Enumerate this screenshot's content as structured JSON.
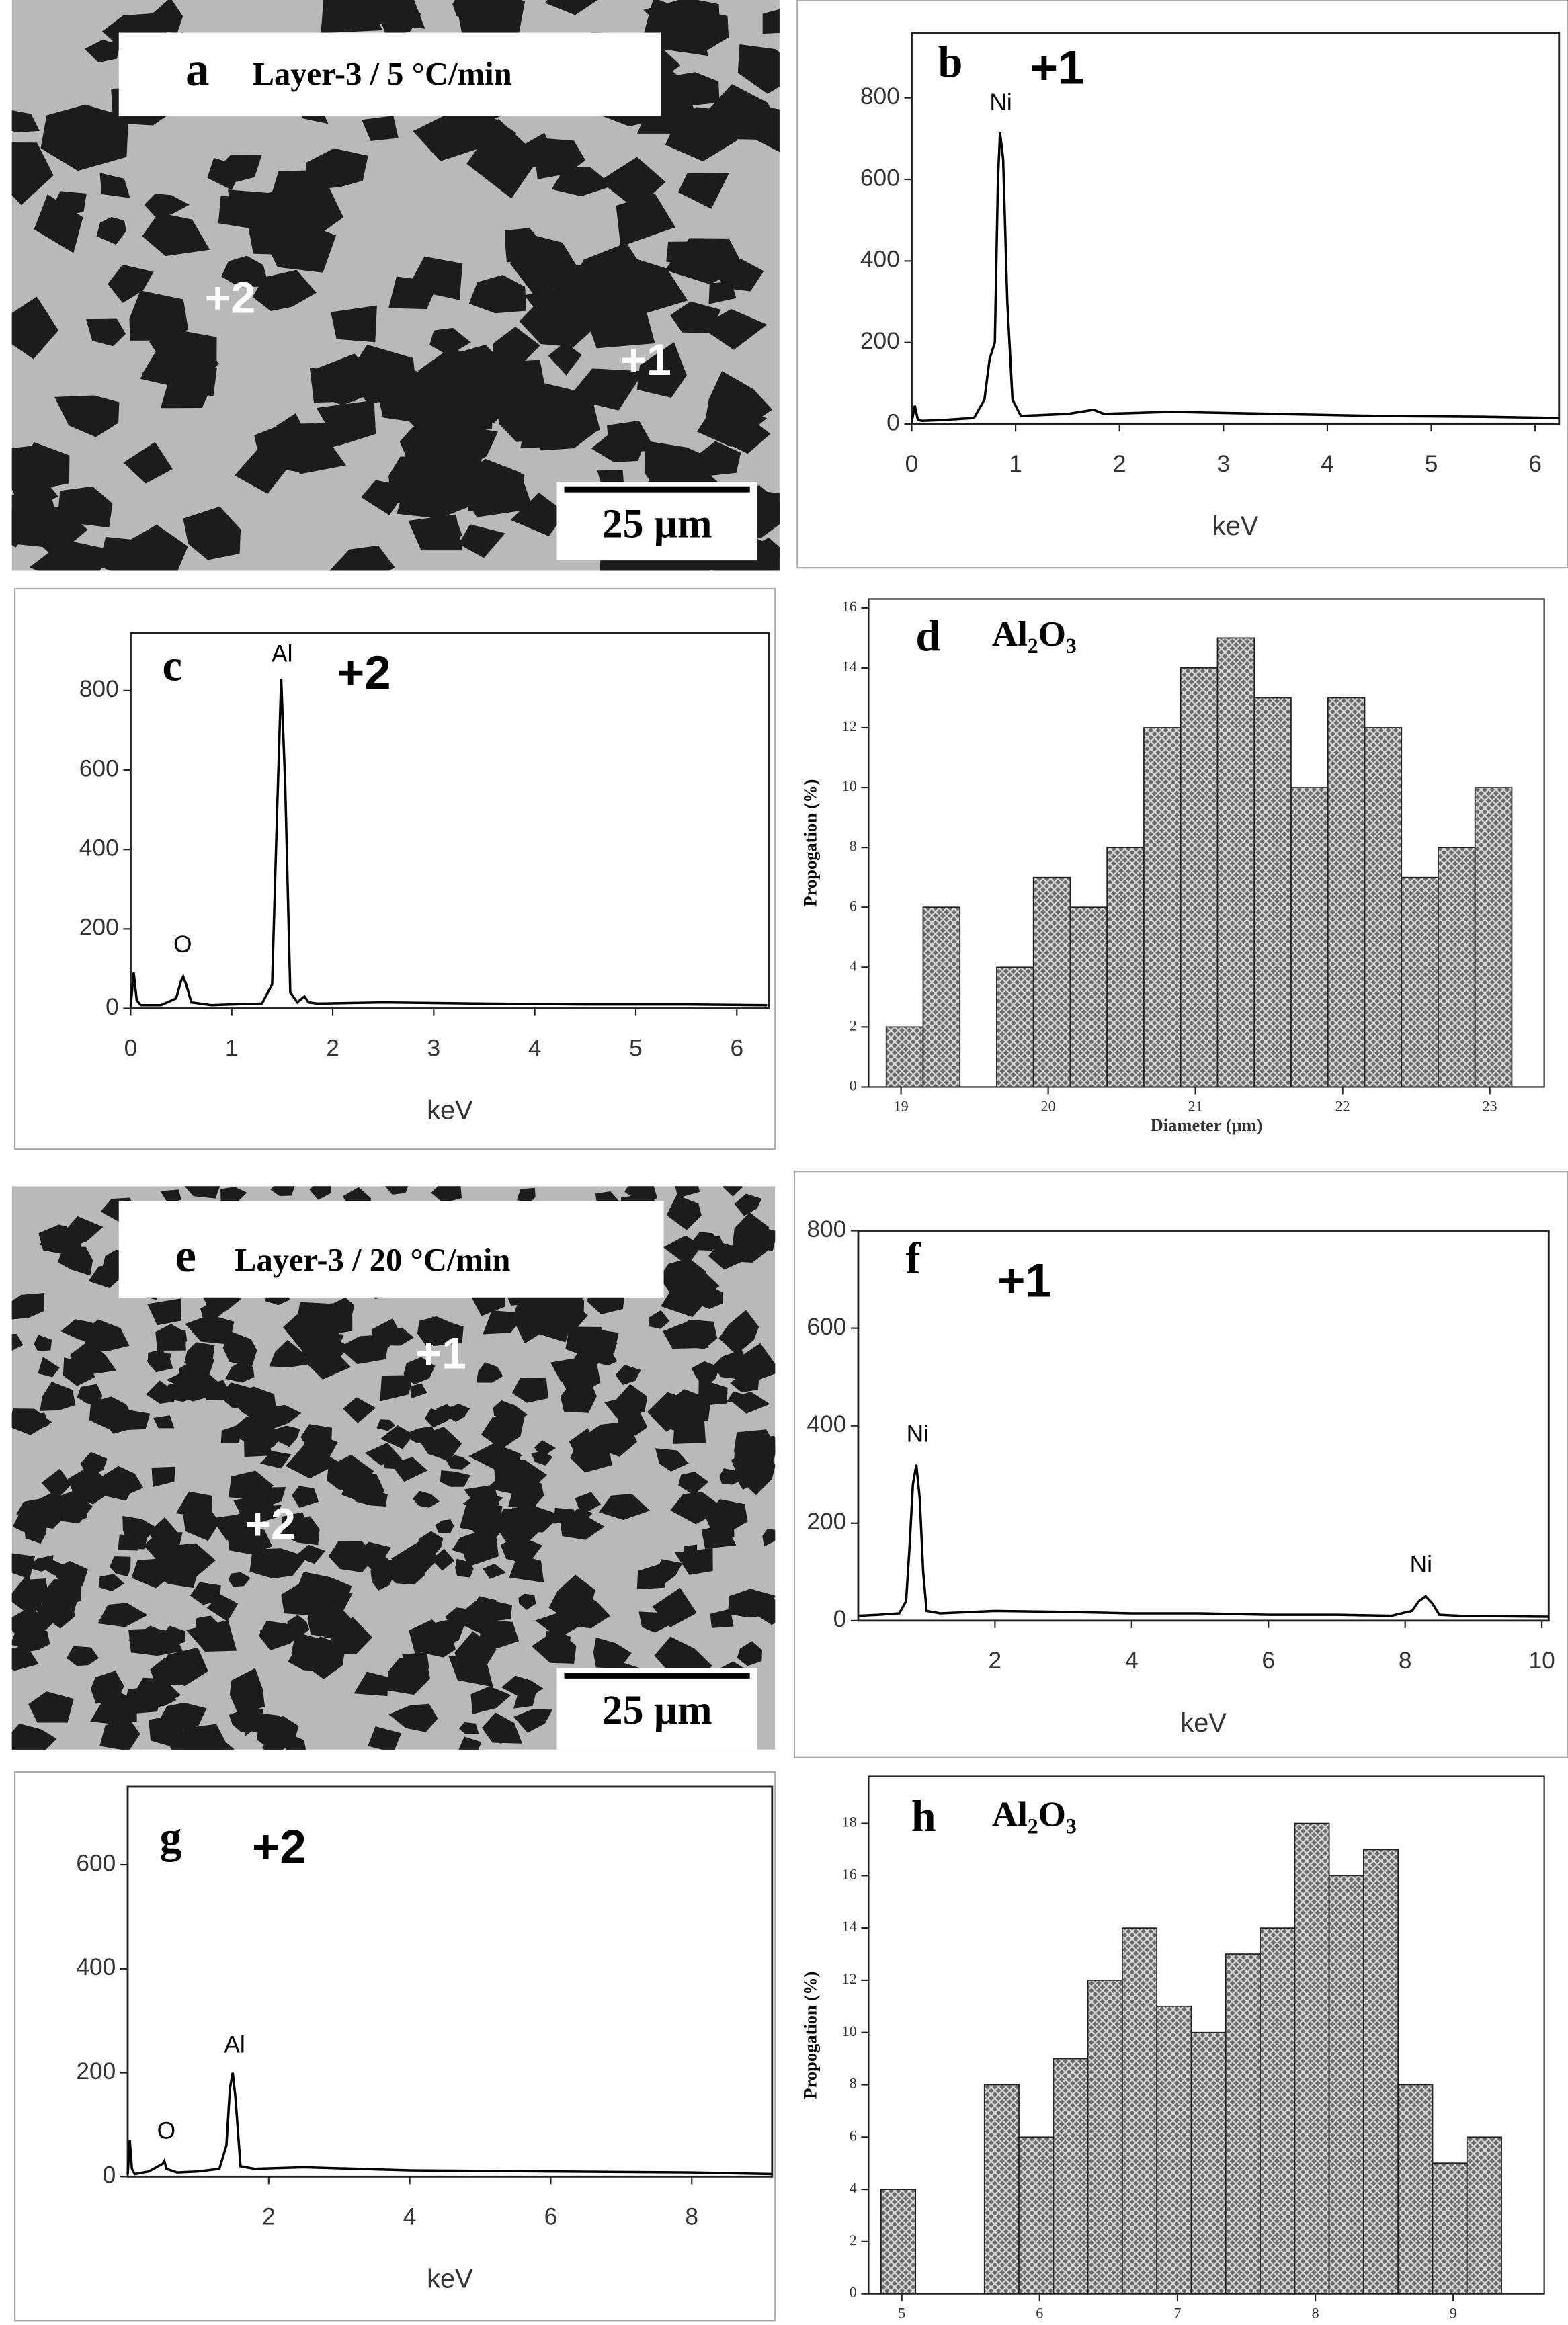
{
  "micrographs": [
    {
      "panel": "a",
      "title": "Layer-3 / 5 °C/min",
      "markers": [
        "+2",
        "+1"
      ],
      "scale_bar": "25 μm"
    },
    {
      "panel": "e",
      "title": "Layer-3 / 20 °C/min",
      "markers": [
        "+1",
        "+2"
      ],
      "scale_bar": "25 μm"
    }
  ],
  "chart_data": [
    {
      "type": "line",
      "panel": "b",
      "annotations": [
        "+1",
        "Ni"
      ],
      "xlabel": "keV",
      "x": [
        0,
        0.03,
        0.06,
        0.1,
        0.3,
        0.6,
        0.7,
        0.75,
        0.8,
        0.83,
        0.85,
        0.88,
        0.92,
        0.97,
        1.05,
        1.5,
        1.75,
        1.85,
        2.5,
        3.5,
        4.5,
        5.5,
        6.23
      ],
      "values": [
        5,
        45,
        10,
        8,
        10,
        15,
        60,
        160,
        200,
        600,
        715,
        650,
        300,
        60,
        20,
        25,
        35,
        25,
        30,
        25,
        20,
        18,
        15
      ],
      "color": "#000000",
      "xlim": [
        0,
        6.23
      ],
      "xticks": [
        0,
        1,
        2,
        3,
        4,
        5,
        6
      ],
      "ylim": [
        0,
        960
      ],
      "yticks": [
        0,
        200,
        400,
        600,
        800
      ]
    },
    {
      "type": "line",
      "panel": "c",
      "annotations": [
        "+2",
        "Al",
        "O"
      ],
      "xlabel": "keV",
      "x": [
        0,
        0.03,
        0.06,
        0.1,
        0.3,
        0.45,
        0.5,
        0.52,
        0.55,
        0.6,
        0.8,
        1.0,
        1.3,
        1.4,
        1.45,
        1.49,
        1.53,
        1.58,
        1.65,
        1.72,
        1.76,
        1.85,
        2.5,
        3.5,
        4.5,
        5.5,
        6.3
      ],
      "values": [
        5,
        90,
        20,
        8,
        8,
        25,
        70,
        80,
        60,
        15,
        8,
        10,
        12,
        60,
        500,
        830,
        560,
        40,
        15,
        30,
        15,
        12,
        15,
        12,
        10,
        10,
        8
      ],
      "color": "#000000",
      "xlim": [
        0,
        6.32
      ],
      "xticks": [
        0,
        1,
        2,
        3,
        4,
        5,
        6
      ],
      "ylim": [
        0,
        945
      ],
      "yticks": [
        0,
        200,
        400,
        600,
        800
      ]
    },
    {
      "type": "histogram",
      "panel": "d",
      "title": "Al₂O₃",
      "xlabel": "Diameter (μm)",
      "ylabel": "Propogation (%)",
      "bins": [
        18.9,
        19.15,
        19.4,
        19.65,
        19.9,
        20.15,
        20.4,
        20.65,
        20.9,
        21.15,
        21.4,
        21.65,
        21.9,
        22.15,
        22.4,
        22.65,
        22.9,
        23.15
      ],
      "values": [
        2,
        6,
        0,
        4,
        7,
        6,
        8,
        12,
        14,
        15,
        13,
        10,
        13,
        12,
        7,
        8,
        10
      ],
      "color": "#555555",
      "xlim": [
        18.78,
        23.37
      ],
      "xticks": [
        19,
        20,
        21,
        22,
        23
      ],
      "ylim": [
        0,
        16.3
      ],
      "yticks": [
        0,
        2,
        4,
        6,
        8,
        10,
        12,
        14,
        16
      ]
    },
    {
      "type": "line",
      "panel": "f",
      "annotations": [
        "+1",
        "Ni",
        "Ni"
      ],
      "xlabel": "keV",
      "x": [
        0,
        0.3,
        0.6,
        0.7,
        0.75,
        0.8,
        0.85,
        0.9,
        0.95,
        1.0,
        1.2,
        2,
        3,
        4,
        5,
        6,
        7,
        7.8,
        8.1,
        8.2,
        8.3,
        8.4,
        8.5,
        8.8,
        10.1
      ],
      "values": [
        10,
        12,
        15,
        40,
        150,
        280,
        320,
        250,
        100,
        20,
        15,
        20,
        18,
        15,
        15,
        12,
        12,
        10,
        20,
        40,
        50,
        35,
        12,
        10,
        8
      ],
      "color": "#000000",
      "xlim": [
        0,
        10.1
      ],
      "xticks": [
        2,
        4,
        6,
        8,
        10
      ],
      "ylim": [
        0,
        800
      ],
      "yticks": [
        0,
        200,
        400,
        600,
        800
      ]
    },
    {
      "type": "line",
      "panel": "g",
      "annotations": [
        "+2",
        "Al",
        "O"
      ],
      "xlabel": "keV",
      "x": [
        0,
        0.03,
        0.06,
        0.1,
        0.3,
        0.5,
        0.52,
        0.55,
        0.7,
        1.0,
        1.3,
        1.4,
        1.45,
        1.49,
        1.53,
        1.6,
        1.8,
        2.5,
        4,
        6,
        8,
        9.14
      ],
      "values": [
        5,
        70,
        15,
        5,
        10,
        25,
        30,
        15,
        8,
        10,
        15,
        60,
        170,
        200,
        150,
        20,
        15,
        18,
        12,
        10,
        8,
        5
      ],
      "color": "#000000",
      "xlim": [
        0,
        9.14
      ],
      "xticks": [
        2,
        4,
        6,
        8
      ],
      "ylim": [
        0,
        750
      ],
      "yticks": [
        0,
        200,
        400,
        600
      ]
    },
    {
      "type": "histogram",
      "panel": "h",
      "title": "Al₂O₃",
      "xlabel": "Diameter (μm)",
      "ylabel": "Propogation (%)",
      "bins": [
        4.85,
        5.1,
        5.35,
        5.6,
        5.85,
        6.1,
        6.35,
        6.6,
        6.85,
        7.1,
        7.35,
        7.6,
        7.85,
        8.1,
        8.35,
        8.6,
        8.85,
        9.1,
        9.35
      ],
      "values": [
        4,
        0,
        0,
        8,
        6,
        9,
        12,
        14,
        11,
        10,
        13,
        14,
        18,
        16,
        17,
        8,
        5,
        6
      ],
      "color": "#555555",
      "xlim": [
        4.76,
        9.66
      ],
      "xticks": [
        5,
        6,
        7,
        8,
        9
      ],
      "ylim": [
        0,
        19.8
      ],
      "yticks": [
        0,
        2,
        4,
        6,
        8,
        10,
        12,
        14,
        16,
        18
      ]
    }
  ]
}
